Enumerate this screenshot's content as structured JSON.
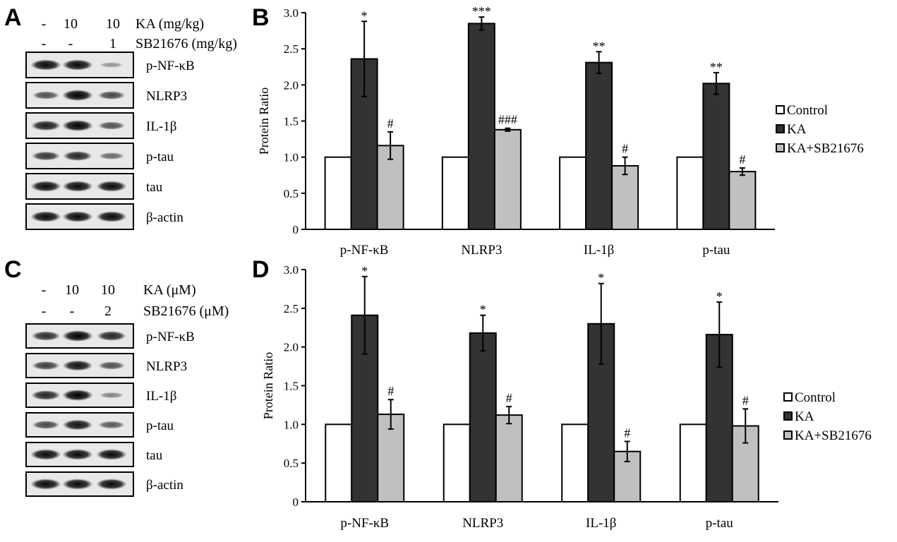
{
  "panels": {
    "A": {
      "label": "A",
      "conditions": [
        {
          "values": [
            "-",
            "10",
            "10"
          ],
          "label": "KA (mg/kg)"
        },
        {
          "values": [
            "-",
            "-",
            "1"
          ],
          "label": "SB21676 (mg/kg)"
        }
      ],
      "bands": [
        {
          "label": "p-NF-κB",
          "intensity": [
            0.95,
            0.95,
            0.15
          ]
        },
        {
          "label": "NLRP3",
          "intensity": [
            0.55,
            1.0,
            0.6
          ]
        },
        {
          "label": "IL-1β",
          "intensity": [
            0.85,
            1.0,
            0.55
          ]
        },
        {
          "label": "p-tau",
          "intensity": [
            0.7,
            0.8,
            0.4
          ]
        },
        {
          "label": "tau",
          "intensity": [
            0.95,
            0.95,
            0.95
          ]
        },
        {
          "label": "β-actin",
          "intensity": [
            0.95,
            0.95,
            0.95
          ]
        }
      ]
    },
    "B": {
      "label": "B"
    },
    "C": {
      "label": "C",
      "conditions": [
        {
          "values": [
            "-",
            "10",
            "10"
          ],
          "label": "KA (μM)"
        },
        {
          "values": [
            "-",
            "-",
            "2"
          ],
          "label": "SB21676 (μM)"
        }
      ],
      "bands": [
        {
          "label": "p-NF-κB",
          "intensity": [
            0.75,
            1.0,
            0.8
          ]
        },
        {
          "label": "NLRP3",
          "intensity": [
            0.65,
            0.9,
            0.55
          ]
        },
        {
          "label": "IL-1β",
          "intensity": [
            0.8,
            1.0,
            0.25
          ]
        },
        {
          "label": "p-tau",
          "intensity": [
            0.6,
            0.9,
            0.5
          ]
        },
        {
          "label": "tau",
          "intensity": [
            0.95,
            0.95,
            0.95
          ]
        },
        {
          "label": "β-actin",
          "intensity": [
            0.95,
            0.95,
            0.95
          ]
        }
      ]
    },
    "D": {
      "label": "D"
    }
  },
  "chart_data": [
    {
      "type": "bar",
      "panel": "B",
      "categories": [
        "p-NF-κB",
        "NLRP3",
        "IL-1β",
        "p-tau"
      ],
      "ylabel": "Protein Ratio",
      "ylim": [
        0,
        3.0
      ],
      "yticks": [
        "0",
        "0.5",
        "1.0",
        "1.5",
        "2.0",
        "2.5",
        "3.0"
      ],
      "legend_position": "right",
      "series": [
        {
          "name": "Control",
          "color": "#ffffff",
          "values": [
            1.0,
            1.0,
            1.0,
            1.0
          ],
          "errors": [
            0,
            0,
            0,
            0
          ],
          "marks": [
            "",
            "",
            "",
            ""
          ]
        },
        {
          "name": "KA",
          "color": "#333333",
          "values": [
            2.36,
            2.85,
            2.31,
            2.02
          ],
          "errors": [
            0.52,
            0.09,
            0.15,
            0.15
          ],
          "marks": [
            "*",
            "***",
            "**",
            "**"
          ]
        },
        {
          "name": "KA+SB21676",
          "color": "#c0c0c0",
          "values": [
            1.16,
            1.38,
            0.88,
            0.8
          ],
          "errors": [
            0.19,
            0.02,
            0.12,
            0.05
          ],
          "marks": [
            "#",
            "###",
            "#",
            "#"
          ]
        }
      ]
    },
    {
      "type": "bar",
      "panel": "D",
      "categories": [
        "p-NF-κB",
        "NLRP3",
        "IL-1β",
        "p-tau"
      ],
      "ylabel": "Protein Ratio",
      "ylim": [
        0,
        3.0
      ],
      "yticks": [
        "0",
        "0.5",
        "1.0",
        "1.5",
        "2.0",
        "2.5",
        "3.0"
      ],
      "legend_position": "right",
      "series": [
        {
          "name": "Control",
          "color": "#ffffff",
          "values": [
            1.0,
            1.0,
            1.0,
            1.0
          ],
          "errors": [
            0,
            0,
            0,
            0
          ],
          "marks": [
            "",
            "",
            "",
            ""
          ]
        },
        {
          "name": "KA",
          "color": "#333333",
          "values": [
            2.41,
            2.18,
            2.3,
            2.16
          ],
          "errors": [
            0.5,
            0.23,
            0.52,
            0.42
          ],
          "marks": [
            "*",
            "*",
            "*",
            "*"
          ]
        },
        {
          "name": "KA+SB21676",
          "color": "#c0c0c0",
          "values": [
            1.13,
            1.12,
            0.65,
            0.98
          ],
          "errors": [
            0.19,
            0.11,
            0.13,
            0.22
          ],
          "marks": [
            "#",
            "#",
            "#",
            "#"
          ]
        }
      ]
    }
  ]
}
